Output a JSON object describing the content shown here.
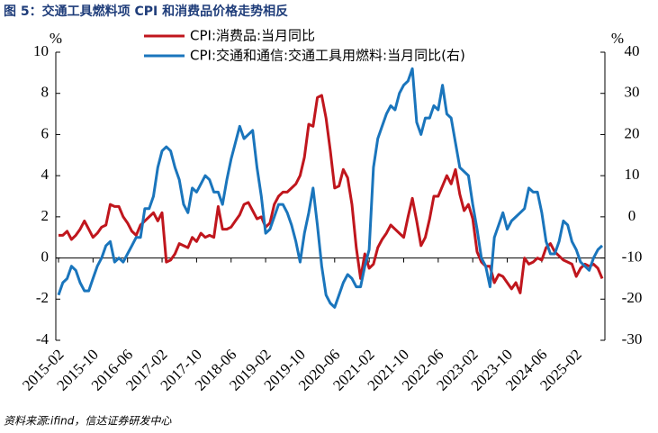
{
  "chart_data": {
    "type": "line",
    "title": "图 5：交通工具燃料项 CPI 和消费品价格走势相反",
    "source": "资料来源:ifind，信达证券研发中心",
    "y_unit": "%",
    "y2_unit": "%",
    "ylim": [
      -4,
      10
    ],
    "yticks": [
      -4,
      -2,
      0,
      2,
      4,
      6,
      8,
      10
    ],
    "y2lim": [
      -30,
      40
    ],
    "y2ticks": [
      -30,
      -20,
      -10,
      0,
      10,
      20,
      30,
      40
    ],
    "categories": [
      "2015-02",
      null,
      null,
      null,
      null,
      null,
      null,
      null,
      "2015-10",
      null,
      null,
      null,
      null,
      null,
      null,
      null,
      "2016-06",
      null,
      null,
      null,
      null,
      null,
      null,
      null,
      "2017-02",
      null,
      null,
      null,
      null,
      null,
      null,
      null,
      "2017-10",
      null,
      null,
      null,
      null,
      null,
      null,
      null,
      "2018-06",
      null,
      null,
      null,
      null,
      null,
      null,
      null,
      "2019-02",
      null,
      null,
      null,
      null,
      null,
      null,
      null,
      "2019-10",
      null,
      null,
      null,
      null,
      null,
      null,
      null,
      "2020-06",
      null,
      null,
      null,
      null,
      null,
      null,
      null,
      "2021-02",
      null,
      null,
      null,
      null,
      null,
      null,
      null,
      "2021-10",
      null,
      null,
      null,
      null,
      null,
      null,
      null,
      "2022-06",
      null,
      null,
      null,
      null,
      null,
      null,
      null,
      "2023-02",
      null,
      null,
      null,
      null,
      null,
      null,
      null,
      "2023-10",
      null,
      null,
      null,
      null,
      null,
      null,
      null,
      "2024-06",
      null,
      null,
      null,
      null,
      null,
      null,
      null,
      "2025-02",
      null,
      null,
      null,
      null,
      null,
      null
    ],
    "series": [
      {
        "name": "CPI:消费品:当月同比",
        "color": "#c0161d",
        "axis": "y",
        "values": [
          1.1,
          1.1,
          1.3,
          0.9,
          1.1,
          1.4,
          1.8,
          1.4,
          1.0,
          1.2,
          1.5,
          1.6,
          2.6,
          2.5,
          2.5,
          2.0,
          1.7,
          1.3,
          1.1,
          1.6,
          1.8,
          2.0,
          2.2,
          1.8,
          2.2,
          -0.2,
          -0.1,
          0.2,
          0.7,
          0.6,
          0.5,
          1.0,
          0.8,
          1.2,
          1.0,
          1.1,
          1.0,
          2.5,
          1.4,
          1.4,
          1.5,
          1.8,
          2.1,
          2.6,
          2.7,
          2.3,
          1.9,
          2.0,
          1.5,
          1.7,
          2.6,
          3.0,
          3.2,
          3.2,
          3.4,
          3.6,
          4.0,
          4.9,
          6.5,
          6.4,
          7.8,
          7.9,
          6.8,
          5.2,
          3.4,
          3.5,
          4.3,
          3.9,
          2.6,
          0.5,
          -1.0,
          0.2,
          -0.5,
          -0.3,
          0.5,
          0.9,
          1.2,
          1.6,
          1.4,
          1.2,
          1.0,
          2.0,
          2.9,
          1.8,
          0.6,
          1.0,
          1.9,
          3.0,
          3.0,
          3.5,
          4.0,
          3.6,
          4.3,
          3.1,
          2.3,
          2.6,
          1.9,
          0.3,
          -0.2,
          -0.4,
          -0.4,
          -1.2,
          -0.8,
          -0.9,
          -1.2,
          -1.5,
          -1.2,
          -1.7,
          0.0,
          -0.3,
          -0.2,
          0.0,
          -0.1,
          0.5,
          0.7,
          0.3,
          0.1,
          -0.1,
          -0.2,
          -0.3,
          -0.9,
          -0.5,
          -0.3,
          -0.4,
          -0.3,
          -0.5,
          -1.0
        ]
      },
      {
        "name": "CPI:交通和通信:交通工具用燃料:当月同比(右)",
        "color": "#1a75bc",
        "axis": "y2",
        "values": [
          -19,
          -16,
          -15,
          -12,
          -13,
          -16,
          -18,
          -18,
          -15,
          -12,
          -10,
          -7,
          -6,
          -11,
          -10,
          -11,
          -9,
          -7,
          -5,
          -5,
          2,
          2,
          5,
          12,
          16,
          17,
          16,
          12,
          9,
          3,
          1,
          7,
          6,
          8,
          10,
          9,
          6,
          6,
          3,
          9,
          14,
          18,
          22,
          19,
          20,
          21,
          12,
          5,
          -4,
          -3,
          0,
          3,
          3,
          1,
          -2,
          -6,
          -11,
          -4,
          1,
          7,
          -2,
          -12,
          -19,
          -21,
          -22,
          -19,
          -16,
          -14,
          -15,
          -17,
          -17,
          -12,
          -8,
          12,
          19,
          22,
          25,
          27,
          26,
          30,
          32,
          33,
          36,
          23,
          20,
          24,
          24,
          27,
          26,
          32,
          25,
          24,
          18,
          12,
          11,
          10,
          3,
          -3,
          -10,
          -12,
          -17,
          -5,
          -2,
          1,
          -3,
          -1,
          0,
          1,
          2,
          7,
          6,
          6,
          1,
          -6,
          -9,
          -9,
          -6,
          -1,
          -2,
          -6,
          -8,
          -11,
          -12,
          -13,
          -10,
          -8,
          -7
        ]
      }
    ]
  }
}
